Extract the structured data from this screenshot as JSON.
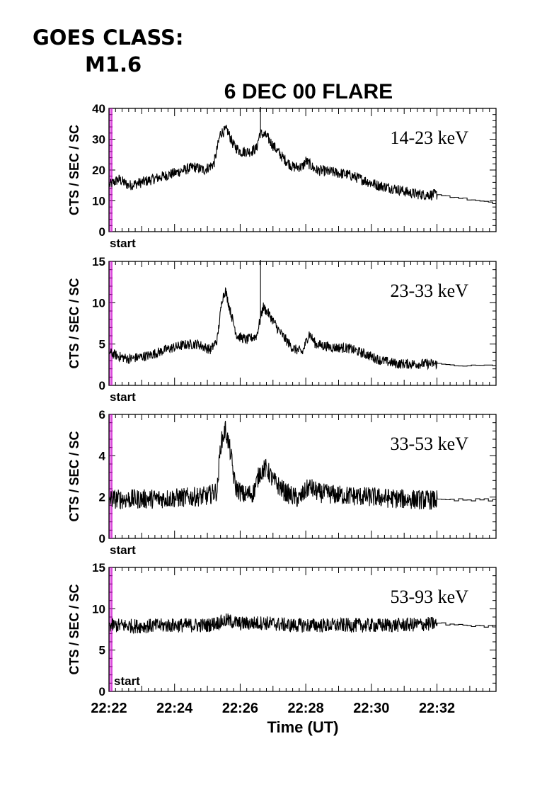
{
  "header": {
    "goes_line1": "GOES CLASS:",
    "goes_line2": "M1.6"
  },
  "chart_data": {
    "type": "line",
    "title": "6 DEC 00 FLARE",
    "xlabel": "Time (UT)",
    "x_ticks": [
      "22:22",
      "22:24",
      "22:26",
      "22:28",
      "22:30",
      "22:32"
    ],
    "xlim_minutes": [
      22.0,
      33.8
    ],
    "marker_label": "start",
    "marker_color": "#cc00cc",
    "panels": [
      {
        "band": "14-23 keV",
        "ylabel": "CTS / SEC / SC",
        "ylim": [
          0,
          40
        ],
        "yticks": [
          0,
          10,
          20,
          30,
          40
        ],
        "series_points": [
          [
            22.0,
            15
          ],
          [
            22.3,
            17
          ],
          [
            22.6,
            15
          ],
          [
            23.0,
            16
          ],
          [
            23.5,
            17.5
          ],
          [
            24.0,
            19
          ],
          [
            24.6,
            21
          ],
          [
            24.9,
            20
          ],
          [
            25.2,
            22
          ],
          [
            25.4,
            32
          ],
          [
            25.6,
            33
          ],
          [
            25.8,
            28
          ],
          [
            26.0,
            26
          ],
          [
            26.3,
            26
          ],
          [
            26.5,
            27
          ],
          [
            26.6,
            32
          ],
          [
            26.8,
            31
          ],
          [
            27.0,
            28
          ],
          [
            27.3,
            24
          ],
          [
            27.6,
            21
          ],
          [
            27.9,
            21
          ],
          [
            28.0,
            23
          ],
          [
            28.3,
            20
          ],
          [
            28.7,
            19.5
          ],
          [
            29.3,
            18.5
          ],
          [
            29.7,
            17
          ],
          [
            30.2,
            15
          ],
          [
            30.7,
            14
          ],
          [
            31.2,
            12.5
          ],
          [
            31.6,
            12
          ],
          [
            32.0,
            12
          ],
          [
            32.6,
            11
          ],
          [
            33.2,
            10
          ],
          [
            33.8,
            9
          ]
        ],
        "noise": 1.1,
        "spike": {
          "t": 26.62,
          "v": 41
        }
      },
      {
        "band": "23-33 keV",
        "ylabel": "CTS / SEC / SC",
        "ylim": [
          0,
          15
        ],
        "yticks": [
          0,
          5,
          10,
          15
        ],
        "series_points": [
          [
            22.0,
            4
          ],
          [
            22.3,
            3.5
          ],
          [
            22.6,
            3.2
          ],
          [
            23.2,
            3.6
          ],
          [
            23.8,
            4.4
          ],
          [
            24.3,
            4.9
          ],
          [
            24.7,
            5
          ],
          [
            25.1,
            4.3
          ],
          [
            25.3,
            5.5
          ],
          [
            25.45,
            10.5
          ],
          [
            25.55,
            11.5
          ],
          [
            25.7,
            9
          ],
          [
            25.9,
            6
          ],
          [
            26.2,
            5.5
          ],
          [
            26.5,
            6
          ],
          [
            26.7,
            9.5
          ],
          [
            26.9,
            8.5
          ],
          [
            27.2,
            6.5
          ],
          [
            27.6,
            4.5
          ],
          [
            27.9,
            4
          ],
          [
            28.1,
            6.3
          ],
          [
            28.3,
            5
          ],
          [
            28.8,
            4.6
          ],
          [
            29.3,
            4.5
          ],
          [
            29.8,
            3.8
          ],
          [
            30.3,
            3
          ],
          [
            30.8,
            2.6
          ],
          [
            31.5,
            2.6
          ],
          [
            32.0,
            2.6
          ],
          [
            32.6,
            2.4
          ],
          [
            33.2,
            2.4
          ],
          [
            33.8,
            2.4
          ]
        ],
        "noise": 0.38,
        "spike": {
          "t": 26.62,
          "v": 15.5
        }
      },
      {
        "band": "33-53 keV",
        "ylabel": "CTS / SEC / SC",
        "ylim": [
          0,
          6
        ],
        "yticks": [
          0,
          2,
          4,
          6
        ],
        "series_points": [
          [
            22.0,
            1.9
          ],
          [
            23.0,
            1.9
          ],
          [
            24.0,
            1.95
          ],
          [
            25.0,
            2.05
          ],
          [
            25.3,
            2.3
          ],
          [
            25.4,
            4.5
          ],
          [
            25.55,
            5.3
          ],
          [
            25.7,
            4.2
          ],
          [
            25.85,
            2.5
          ],
          [
            26.1,
            2.1
          ],
          [
            26.4,
            2.2
          ],
          [
            26.6,
            3.2
          ],
          [
            26.8,
            3.4
          ],
          [
            27.0,
            2.8
          ],
          [
            27.4,
            2.2
          ],
          [
            27.8,
            1.9
          ],
          [
            28.1,
            2.5
          ],
          [
            28.4,
            2.2
          ],
          [
            29.0,
            2.1
          ],
          [
            30.0,
            2.0
          ],
          [
            31.0,
            1.9
          ],
          [
            32.0,
            1.85
          ],
          [
            33.0,
            1.85
          ],
          [
            33.8,
            1.85
          ]
        ],
        "noise": 0.3,
        "spike": null
      },
      {
        "band": "53-93 keV",
        "ylabel": "CTS / SEC / SC",
        "ylim": [
          0,
          15
        ],
        "yticks": [
          0,
          5,
          10,
          15
        ],
        "series_points": [
          [
            22.0,
            8
          ],
          [
            23.0,
            7.9
          ],
          [
            24.0,
            8
          ],
          [
            25.0,
            8
          ],
          [
            25.6,
            8.6
          ],
          [
            26.0,
            8.2
          ],
          [
            26.7,
            8.3
          ],
          [
            27.5,
            8
          ],
          [
            28.5,
            8
          ],
          [
            29.5,
            8
          ],
          [
            30.5,
            8
          ],
          [
            31.5,
            8.1
          ],
          [
            32.0,
            8.2
          ],
          [
            32.6,
            8.1
          ],
          [
            33.2,
            7.9
          ],
          [
            33.8,
            7.8
          ]
        ],
        "noise": 0.55,
        "spike": null
      }
    ]
  }
}
